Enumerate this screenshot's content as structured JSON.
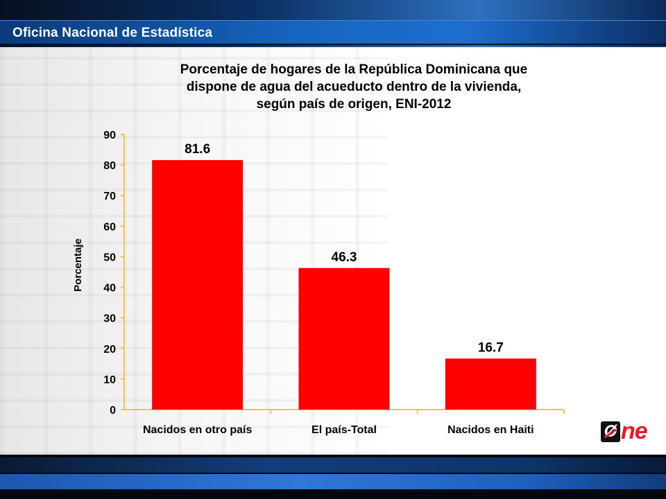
{
  "header": {
    "org_title": "Oficina Nacional de Estadística"
  },
  "logo": {
    "first_letter": "Ø",
    "rest": "ne"
  },
  "colors": {
    "bar": "#ff0000",
    "axis": "#f2c14e",
    "header": "#0b3a7a",
    "logo_red": "#e41e26"
  },
  "chart_data": {
    "type": "bar",
    "title": "Porcentaje de hogares de la República Dominicana que dispone de agua del acueducto dentro de la vivienda, según país de origen, ENI-2012",
    "title_lines": [
      "Porcentaje de hogares de la República Dominicana que",
      "dispone de agua del acueducto dentro de la vivienda,",
      "según país de origen, ENI-2012"
    ],
    "xlabel": "",
    "ylabel": "Porcentaje",
    "categories": [
      "Nacidos en otro país",
      "El país-Total",
      "Nacidos en Haiti"
    ],
    "values": [
      81.6,
      46.3,
      16.7
    ],
    "value_labels": [
      "81.6",
      "46.3",
      "16.7"
    ],
    "ylim": [
      0,
      90
    ],
    "yticks": [
      0,
      10,
      20,
      30,
      40,
      50,
      60,
      70,
      80,
      90
    ],
    "grid": false,
    "legend": "none"
  }
}
